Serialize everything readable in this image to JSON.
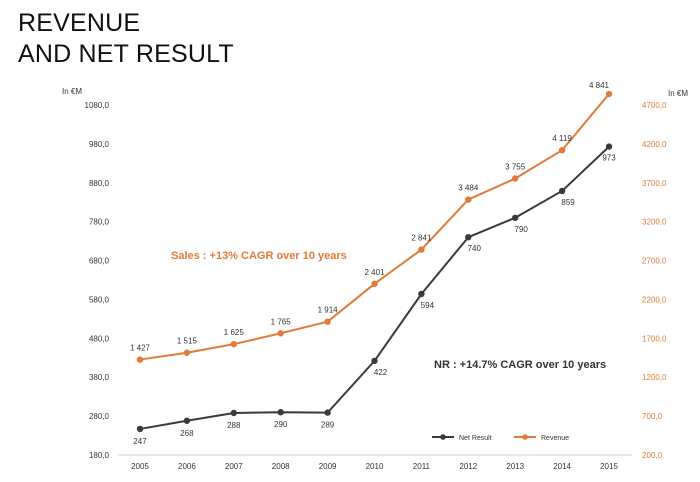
{
  "page": {
    "title_line1": "REVENUE",
    "title_line2": "AND NET RESULT"
  },
  "chart_data": {
    "type": "line",
    "title": "REVENUE AND NET RESULT",
    "unit_left": "In €M",
    "unit_right": "In €M",
    "categories": [
      "2005",
      "2006",
      "2007",
      "2008",
      "2009",
      "2010",
      "2011",
      "2012",
      "2013",
      "2014",
      "2015"
    ],
    "y_left": {
      "min": 180,
      "max": 1080,
      "ticks": [
        180,
        280,
        380,
        480,
        580,
        680,
        780,
        880,
        980,
        1080
      ],
      "tick_labels": [
        "180,0",
        "280,0",
        "380,0",
        "480,0",
        "580,0",
        "680,0",
        "780,0",
        "880,0",
        "980,0",
        "1080,0"
      ]
    },
    "y_right": {
      "min": 200,
      "max": 4700,
      "ticks": [
        200,
        700,
        1200,
        1700,
        2200,
        2700,
        3200,
        3700,
        4200,
        4700
      ],
      "tick_labels": [
        "200,0",
        "700,0",
        "1200,0",
        "1700,0",
        "2200,0",
        "2700,0",
        "3200,0",
        "3700,0",
        "4200,0",
        "4700,0"
      ]
    },
    "series": [
      {
        "name": "Net Result",
        "axis": "left",
        "color": "#3a3a3a",
        "values": [
          247,
          268,
          288,
          290,
          289,
          422,
          594,
          740,
          790,
          859,
          973
        ],
        "labels": [
          "247",
          "268",
          "288",
          "290",
          "289",
          "422",
          "594",
          "740",
          "790",
          "859",
          "973"
        ]
      },
      {
        "name": "Revenue",
        "axis": "right",
        "color": "#e07b39",
        "values": [
          1427,
          1515,
          1625,
          1765,
          1914,
          2401,
          2841,
          3484,
          3755,
          4119,
          4841
        ],
        "labels": [
          "1 427",
          "1 515",
          "1 625",
          "1 765",
          "1 914",
          "2 401",
          "2 841",
          "3 484",
          "3 755",
          "4 119",
          "4 841"
        ]
      }
    ],
    "annotations": {
      "sales": "Sales : +13% CAGR over 10 years",
      "nr": "NR : +14.7% CAGR over 10 years"
    },
    "colors": {
      "sales_annotation": "#e07b39",
      "nr_annotation": "#333333",
      "left_axis_text": "#333333",
      "right_axis_text": "#e07b39"
    },
    "grid": false,
    "legend": "bottom-right"
  }
}
